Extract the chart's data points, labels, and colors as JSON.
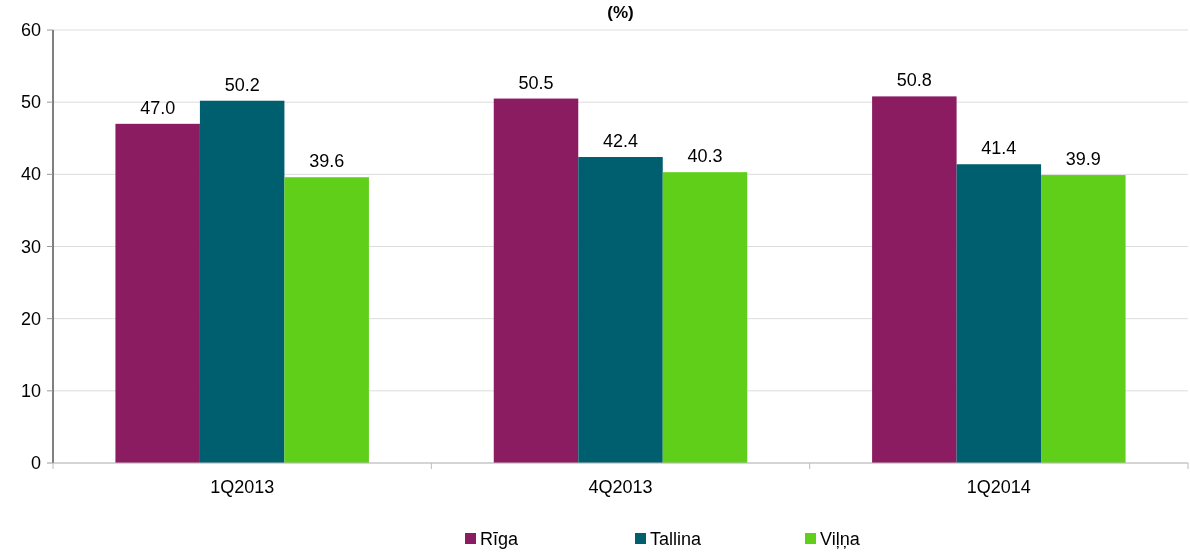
{
  "chart_data": {
    "type": "bar",
    "title": "(%)",
    "categories": [
      "1Q2013",
      "4Q2013",
      "1Q2014"
    ],
    "series": [
      {
        "name": "Rīga",
        "color": "#8b1c62",
        "values": [
          47.0,
          50.5,
          50.8
        ],
        "value_labels": [
          "47.0",
          "50.5",
          "50.8"
        ]
      },
      {
        "name": "Tallina",
        "color": "#005f6e",
        "values": [
          50.2,
          42.4,
          41.4
        ],
        "value_labels": [
          "50.2",
          "42.4",
          "41.4"
        ]
      },
      {
        "name": "Viļņa",
        "color": "#5fcf1a",
        "values": [
          39.6,
          40.3,
          39.9
        ],
        "value_labels": [
          "39.6",
          "40.3",
          "39.9"
        ]
      }
    ],
    "ylim": [
      0,
      60
    ],
    "yticks": [
      0,
      10,
      20,
      30,
      40,
      50,
      60
    ],
    "grid": "y",
    "legend": "bottom"
  }
}
